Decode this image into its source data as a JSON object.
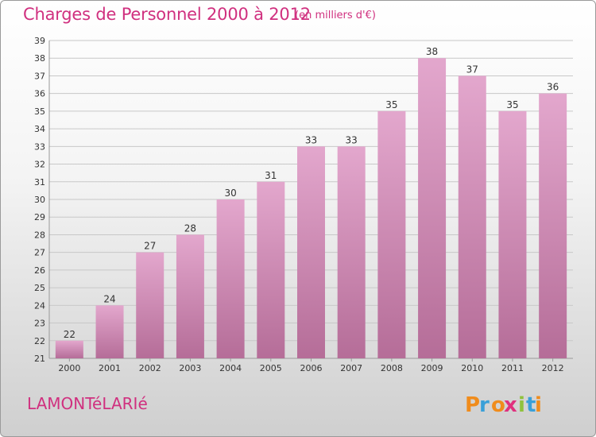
{
  "header": {
    "title": "Charges de Personnel 2000 à 2012",
    "subtitle": "(en milliers d'€)"
  },
  "footer": {
    "place_name": "LAMONTéLARIé",
    "logo_text": "Proxiti"
  },
  "colors": {
    "title": "#d0307f",
    "bar_top": "#e3a7cd",
    "bar_bottom": "#b56d98",
    "logo_letters": [
      "#f08c1c",
      "#3aa0d8",
      "#f08c1c",
      "#e0317e",
      "#8fc23c",
      "#3aa0d8",
      "#f08c1c"
    ]
  },
  "chart_data": {
    "type": "bar",
    "title": "Charges de Personnel 2000 à 2012",
    "subtitle": "(en milliers d'€)",
    "xlabel": "",
    "ylabel": "",
    "categories": [
      "2000",
      "2001",
      "2002",
      "2003",
      "2004",
      "2005",
      "2006",
      "2007",
      "2008",
      "2009",
      "2010",
      "2011",
      "2012"
    ],
    "values": [
      22,
      24,
      27,
      28,
      30,
      31,
      33,
      33,
      35,
      38,
      37,
      35,
      36
    ],
    "ylim": [
      21,
      39
    ],
    "yticks": [
      21,
      22,
      23,
      24,
      25,
      26,
      27,
      28,
      29,
      30,
      31,
      32,
      33,
      34,
      35,
      36,
      37,
      38,
      39
    ],
    "grid": "horizontal",
    "data_labels": true
  }
}
